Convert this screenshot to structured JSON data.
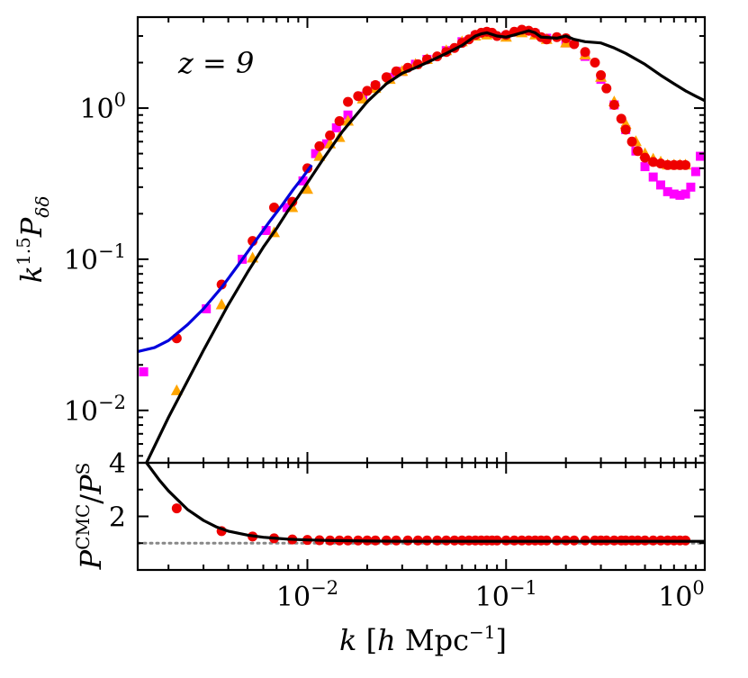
{
  "chart_data": [
    {
      "type": "scatter",
      "panel": "top",
      "xscale": "log",
      "yscale": "log",
      "xlim": [
        0.0014,
        1.0
      ],
      "ylim": [
        0.0045,
        4.0
      ],
      "ylabel_text": "k1.5Pδδ",
      "annotation": "z = 9",
      "yticks": [
        {
          "value": 0.01,
          "base": "10",
          "exp": "−2"
        },
        {
          "value": 0.1,
          "base": "10",
          "exp": "−1"
        },
        {
          "value": 1.0,
          "base": "10",
          "exp": "0"
        }
      ],
      "series": [
        {
          "name": "magenta squares",
          "kind": "square",
          "color": "#ff00ff",
          "x": [
            0.0015,
            0.0031,
            0.0047,
            0.0062,
            0.0079,
            0.0095,
            0.011,
            0.0125,
            0.014,
            0.016,
            0.019,
            0.022,
            0.026,
            0.03,
            0.035,
            0.04,
            0.05,
            0.06,
            0.07,
            0.08,
            0.1,
            0.12,
            0.14,
            0.16,
            0.2,
            0.25,
            0.3,
            0.35,
            0.4,
            0.45,
            0.5,
            0.55,
            0.6,
            0.65,
            0.7,
            0.75,
            0.8,
            0.85,
            0.9,
            0.95
          ],
          "y": [
            0.018,
            0.047,
            0.1,
            0.155,
            0.22,
            0.33,
            0.5,
            0.58,
            0.74,
            0.9,
            1.2,
            1.4,
            1.6,
            1.75,
            1.95,
            2.1,
            2.4,
            2.75,
            3.0,
            3.1,
            3.0,
            3.2,
            3.1,
            2.9,
            2.7,
            2.2,
            1.55,
            1.05,
            0.72,
            0.52,
            0.41,
            0.35,
            0.31,
            0.28,
            0.27,
            0.265,
            0.27,
            0.3,
            0.38,
            0.48
          ]
        },
        {
          "name": "orange triangles",
          "kind": "triangle",
          "color": "#ffa500",
          "x": [
            0.0022,
            0.0037,
            0.0053,
            0.0068,
            0.0084,
            0.01,
            0.0115,
            0.013,
            0.0145,
            0.016,
            0.019,
            0.022,
            0.026,
            0.03,
            0.035,
            0.04,
            0.05,
            0.06,
            0.07,
            0.08,
            0.1,
            0.12,
            0.14,
            0.16,
            0.2,
            0.25,
            0.3,
            0.35,
            0.4,
            0.45,
            0.5,
            0.55,
            0.6,
            0.65,
            0.7,
            0.75,
            0.8
          ],
          "y": [
            0.0135,
            0.05,
            0.102,
            0.15,
            0.22,
            0.29,
            0.48,
            0.58,
            0.64,
            0.82,
            1.15,
            1.35,
            1.55,
            1.75,
            1.95,
            2.1,
            2.4,
            2.75,
            3.0,
            3.05,
            2.95,
            3.15,
            3.05,
            2.85,
            2.7,
            2.25,
            1.6,
            1.1,
            0.78,
            0.6,
            0.5,
            0.46,
            0.44,
            0.42,
            0.42,
            0.42,
            0.42
          ]
        },
        {
          "name": "red circles",
          "kind": "circle",
          "color": "#ee0000",
          "x": [
            0.0022,
            0.0037,
            0.0053,
            0.0068,
            0.0084,
            0.01,
            0.0115,
            0.013,
            0.0145,
            0.016,
            0.018,
            0.02,
            0.022,
            0.025,
            0.028,
            0.032,
            0.036,
            0.04,
            0.045,
            0.05,
            0.055,
            0.06,
            0.065,
            0.07,
            0.075,
            0.08,
            0.085,
            0.09,
            0.1,
            0.11,
            0.12,
            0.13,
            0.14,
            0.15,
            0.16,
            0.18,
            0.2,
            0.22,
            0.25,
            0.28,
            0.3,
            0.32,
            0.35,
            0.38,
            0.4,
            0.43,
            0.46,
            0.5,
            0.55,
            0.6,
            0.65,
            0.7,
            0.75,
            0.8
          ],
          "y": [
            0.03,
            0.068,
            0.132,
            0.22,
            0.24,
            0.4,
            0.56,
            0.66,
            0.82,
            1.1,
            1.2,
            1.3,
            1.42,
            1.6,
            1.75,
            1.85,
            1.95,
            2.1,
            2.2,
            2.35,
            2.5,
            2.7,
            2.85,
            3.05,
            3.15,
            3.2,
            3.15,
            3.0,
            3.05,
            3.2,
            3.3,
            3.25,
            3.15,
            2.95,
            2.85,
            2.95,
            2.9,
            2.65,
            2.35,
            2.0,
            1.65,
            1.35,
            1.05,
            0.85,
            0.72,
            0.6,
            0.52,
            0.47,
            0.44,
            0.43,
            0.42,
            0.42,
            0.42,
            0.42
          ]
        },
        {
          "name": "blue curve",
          "kind": "line",
          "color": "#0000dd",
          "x": [
            0.0014,
            0.0017,
            0.002,
            0.0025,
            0.003,
            0.0037,
            0.0045,
            0.0055,
            0.0065,
            0.0075,
            0.0085,
            0.0095,
            0.0105
          ],
          "y": [
            0.0245,
            0.026,
            0.029,
            0.037,
            0.047,
            0.065,
            0.092,
            0.133,
            0.18,
            0.23,
            0.29,
            0.35,
            0.42
          ]
        },
        {
          "name": "black curve",
          "kind": "line",
          "color": "#000000",
          "x": [
            0.00155,
            0.002,
            0.003,
            0.004,
            0.005,
            0.006,
            0.007,
            0.008,
            0.009,
            0.01,
            0.012,
            0.015,
            0.02,
            0.025,
            0.03,
            0.035,
            0.04,
            0.05,
            0.06,
            0.065,
            0.07,
            0.075,
            0.08,
            0.09,
            0.1,
            0.11,
            0.13,
            0.14,
            0.15,
            0.18,
            0.2,
            0.22,
            0.25,
            0.3,
            0.35,
            0.4,
            0.5,
            0.6,
            0.7,
            0.8,
            0.9,
            1.0
          ],
          "y": [
            0.0045,
            0.009,
            0.025,
            0.05,
            0.082,
            0.12,
            0.16,
            0.21,
            0.26,
            0.32,
            0.46,
            0.7,
            1.1,
            1.45,
            1.7,
            1.85,
            2.0,
            2.3,
            2.6,
            2.8,
            3.0,
            3.1,
            3.15,
            3.0,
            2.95,
            3.05,
            3.25,
            3.15,
            2.95,
            2.9,
            3.0,
            2.85,
            2.75,
            2.7,
            2.5,
            2.3,
            1.95,
            1.65,
            1.45,
            1.3,
            1.2,
            1.12
          ]
        }
      ]
    },
    {
      "type": "scatter",
      "panel": "bottom",
      "xscale": "log",
      "yscale": "linear",
      "xlim": [
        0.0014,
        1.0
      ],
      "ylim": [
        0.0,
        4.0
      ],
      "xlabel_text": "k [h Mpc−1]",
      "ylabel_text": "PCMC/PS",
      "xticks": [
        {
          "value": 0.01,
          "base": "10",
          "exp": "−2"
        },
        {
          "value": 0.1,
          "base": "10",
          "exp": "−1"
        },
        {
          "value": 1.0,
          "base": "10",
          "exp": "0"
        }
      ],
      "yticks": [
        {
          "value": 2,
          "label": "2"
        },
        {
          "value": 4,
          "label": "4"
        }
      ],
      "reference_line": {
        "y": 1.0,
        "style": "dotted",
        "color": "#888888"
      },
      "series": [
        {
          "name": "red circles ratio",
          "kind": "circle",
          "color": "#ee0000",
          "x": [
            0.0022,
            0.0037,
            0.0053,
            0.0068,
            0.0084,
            0.01,
            0.0115,
            0.013,
            0.0145,
            0.016,
            0.018,
            0.02,
            0.022,
            0.025,
            0.028,
            0.032,
            0.036,
            0.04,
            0.045,
            0.05,
            0.055,
            0.06,
            0.065,
            0.07,
            0.075,
            0.08,
            0.085,
            0.09,
            0.1,
            0.11,
            0.12,
            0.13,
            0.14,
            0.15,
            0.16,
            0.18,
            0.2,
            0.22,
            0.25,
            0.28,
            0.3,
            0.32,
            0.35,
            0.38,
            0.4,
            0.43,
            0.46,
            0.5,
            0.55,
            0.6,
            0.65,
            0.7,
            0.75,
            0.8
          ],
          "y": [
            2.3,
            1.45,
            1.25,
            1.18,
            1.14,
            1.12,
            1.11,
            1.1,
            1.1,
            1.1,
            1.1,
            1.1,
            1.1,
            1.1,
            1.1,
            1.1,
            1.1,
            1.1,
            1.1,
            1.1,
            1.1,
            1.1,
            1.1,
            1.1,
            1.1,
            1.1,
            1.1,
            1.1,
            1.1,
            1.1,
            1.1,
            1.1,
            1.1,
            1.1,
            1.1,
            1.1,
            1.1,
            1.1,
            1.1,
            1.1,
            1.1,
            1.1,
            1.1,
            1.1,
            1.1,
            1.1,
            1.1,
            1.1,
            1.1,
            1.1,
            1.1,
            1.1,
            1.1,
            1.1
          ]
        },
        {
          "name": "black ratio curve",
          "kind": "line",
          "color": "#000000",
          "x": [
            0.00155,
            0.0018,
            0.002,
            0.0025,
            0.003,
            0.0035,
            0.004,
            0.005,
            0.006,
            0.007,
            0.008,
            0.01,
            0.013,
            0.02,
            0.03,
            0.05,
            0.1,
            0.2,
            0.5,
            1.0
          ],
          "y": [
            4.0,
            3.35,
            2.95,
            2.25,
            1.85,
            1.6,
            1.45,
            1.3,
            1.22,
            1.18,
            1.15,
            1.12,
            1.1,
            1.08,
            1.07,
            1.07,
            1.07,
            1.07,
            1.07,
            1.07
          ]
        }
      ]
    }
  ]
}
